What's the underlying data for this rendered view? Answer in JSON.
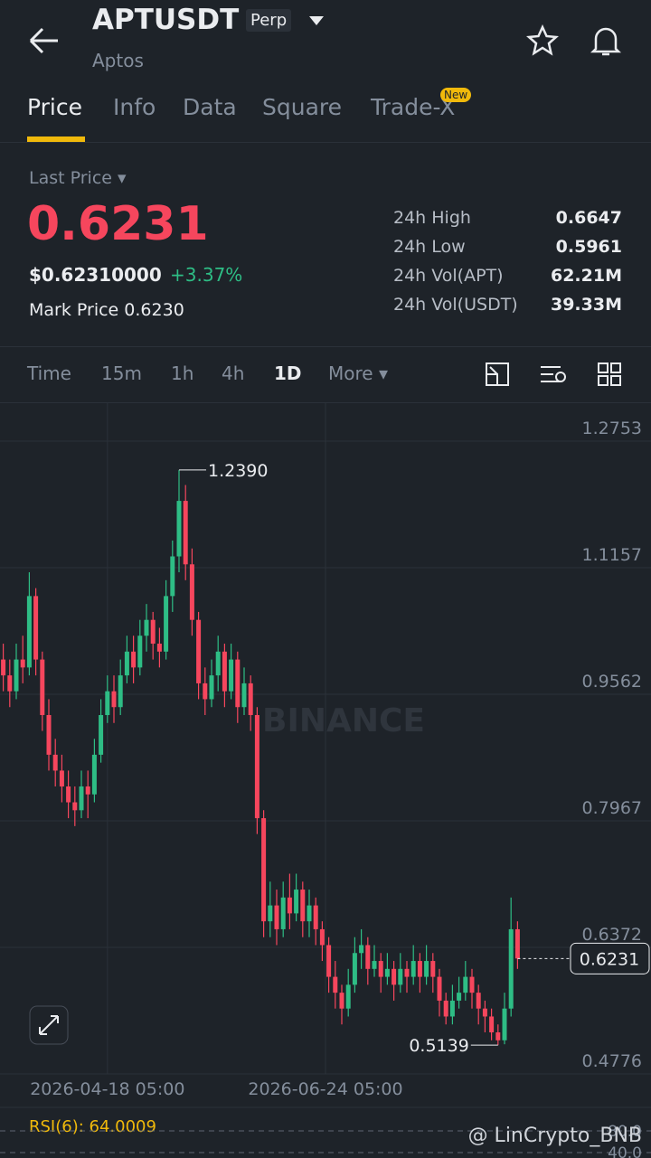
{
  "header": {
    "symbol": "APTUSDT",
    "badge": "Perp",
    "name": "Aptos"
  },
  "tabs": [
    {
      "label": "Price"
    },
    {
      "label": "Info"
    },
    {
      "label": "Data"
    },
    {
      "label": "Square"
    },
    {
      "label": "Trade-X",
      "badge": "New"
    }
  ],
  "ticker": {
    "last_price_label": "Last Price",
    "last_price": "0.6231",
    "usd_price": "$0.62310000",
    "change": "+3.37%",
    "mark_price_label": "Mark Price",
    "mark_price": "0.6230",
    "stats": [
      {
        "label": "24h High",
        "value": "0.6647"
      },
      {
        "label": "24h Low",
        "value": "0.5961"
      },
      {
        "label": "24h Vol(APT)",
        "value": "62.21M"
      },
      {
        "label": "24h Vol(USDT)",
        "value": "39.33M"
      }
    ]
  },
  "intervals": [
    "Time",
    "15m",
    "1h",
    "4h",
    "1D",
    "More"
  ],
  "chart_data": {
    "type": "candlestick",
    "watermark": "BINANCE",
    "up_color": "#2ebd85",
    "down_color": "#f6465d",
    "open": [
      1.0,
      0.98,
      0.96,
      1.0,
      0.99,
      1.08,
      1.0,
      0.93,
      0.88,
      0.86,
      0.84,
      0.82,
      0.81,
      0.84,
      0.83,
      0.88,
      0.93,
      0.96,
      0.94,
      0.98,
      1.01,
      0.99,
      1.03,
      1.05,
      1.02,
      1.01,
      1.08,
      1.13,
      1.2,
      1.12,
      1.05,
      0.97,
      0.95,
      0.98,
      1.01,
      0.96,
      1.0,
      0.94,
      0.97,
      0.93,
      0.8,
      0.67,
      0.69,
      0.66,
      0.7,
      0.68,
      0.71,
      0.67,
      0.69,
      0.66,
      0.64,
      0.6,
      0.58,
      0.56,
      0.59,
      0.63,
      0.64,
      0.61,
      0.62,
      0.6,
      0.61,
      0.59,
      0.61,
      0.6,
      0.62,
      0.6,
      0.62,
      0.6,
      0.57,
      0.55,
      0.57,
      0.58,
      0.6,
      0.58,
      0.56,
      0.55,
      0.53,
      0.52,
      0.56,
      0.66
    ],
    "high": [
      1.02,
      1.0,
      1.02,
      1.03,
      1.11,
      1.09,
      1.01,
      0.95,
      0.9,
      0.88,
      0.86,
      0.84,
      0.86,
      0.86,
      0.9,
      0.95,
      0.98,
      0.98,
      1.0,
      1.03,
      1.03,
      1.05,
      1.07,
      1.06,
      1.04,
      1.1,
      1.15,
      1.239,
      1.22,
      1.14,
      1.06,
      0.99,
      1.0,
      1.03,
      1.02,
      1.02,
      1.01,
      0.99,
      0.98,
      0.94,
      0.81,
      0.72,
      0.71,
      0.72,
      0.73,
      0.73,
      0.72,
      0.71,
      0.7,
      0.67,
      0.65,
      0.62,
      0.59,
      0.61,
      0.65,
      0.66,
      0.65,
      0.64,
      0.63,
      0.63,
      0.62,
      0.63,
      0.62,
      0.64,
      0.63,
      0.64,
      0.63,
      0.61,
      0.58,
      0.59,
      0.6,
      0.62,
      0.61,
      0.59,
      0.57,
      0.56,
      0.54,
      0.58,
      0.7,
      0.67
    ],
    "low": [
      0.96,
      0.94,
      0.95,
      0.97,
      0.98,
      0.98,
      0.91,
      0.86,
      0.84,
      0.82,
      0.8,
      0.79,
      0.8,
      0.8,
      0.82,
      0.87,
      0.92,
      0.92,
      0.93,
      0.97,
      0.97,
      0.98,
      1.01,
      1.0,
      0.99,
      1.0,
      1.06,
      1.11,
      1.1,
      1.03,
      0.95,
      0.93,
      0.94,
      0.96,
      0.94,
      0.95,
      0.92,
      0.93,
      0.91,
      0.78,
      0.65,
      0.65,
      0.64,
      0.65,
      0.66,
      0.67,
      0.65,
      0.65,
      0.64,
      0.62,
      0.58,
      0.56,
      0.54,
      0.55,
      0.58,
      0.61,
      0.59,
      0.6,
      0.58,
      0.59,
      0.57,
      0.58,
      0.58,
      0.59,
      0.58,
      0.59,
      0.58,
      0.55,
      0.54,
      0.54,
      0.56,
      0.57,
      0.56,
      0.54,
      0.53,
      0.52,
      0.5139,
      0.515,
      0.55,
      0.61
    ],
    "close": [
      0.98,
      0.96,
      1.0,
      0.99,
      1.08,
      1.0,
      0.93,
      0.88,
      0.86,
      0.84,
      0.82,
      0.81,
      0.84,
      0.83,
      0.88,
      0.93,
      0.96,
      0.94,
      0.98,
      1.01,
      0.99,
      1.03,
      1.05,
      1.02,
      1.01,
      1.08,
      1.13,
      1.2,
      1.12,
      1.05,
      0.97,
      0.95,
      0.98,
      1.01,
      0.96,
      1.0,
      0.94,
      0.97,
      0.93,
      0.8,
      0.67,
      0.69,
      0.66,
      0.7,
      0.68,
      0.71,
      0.67,
      0.69,
      0.66,
      0.64,
      0.6,
      0.58,
      0.56,
      0.59,
      0.63,
      0.64,
      0.61,
      0.62,
      0.6,
      0.61,
      0.59,
      0.61,
      0.6,
      0.62,
      0.6,
      0.62,
      0.6,
      0.57,
      0.55,
      0.57,
      0.58,
      0.6,
      0.58,
      0.56,
      0.55,
      0.53,
      0.52,
      0.56,
      0.66,
      0.6231
    ],
    "xlim": [
      -0.5,
      99.5
    ],
    "xticks": [
      {
        "value": 16,
        "label": "2026-04-18 05:00"
      },
      {
        "value": 49.5,
        "label": "2026-06-24 05:00"
      }
    ],
    "ylim": [
      0.4776,
      1.3243
    ],
    "yticks": [
      1.2753,
      1.1157,
      0.9562,
      0.7967,
      0.6372,
      0.4776
    ],
    "grid": true,
    "high_annotation": {
      "value": 1.239,
      "label": "1.2390"
    },
    "low_annotation": {
      "value": 0.5139,
      "label": "0.5139"
    },
    "last_price": {
      "value": 0.6231,
      "label": "0.6231"
    }
  },
  "rsi": {
    "label": "RSI(6): 64.0009",
    "ticks": [
      {
        "value": 80,
        "label": "80.0"
      },
      {
        "value": 40,
        "label": "40.0"
      }
    ]
  },
  "watermark": "@ LinCrypto_BNB"
}
